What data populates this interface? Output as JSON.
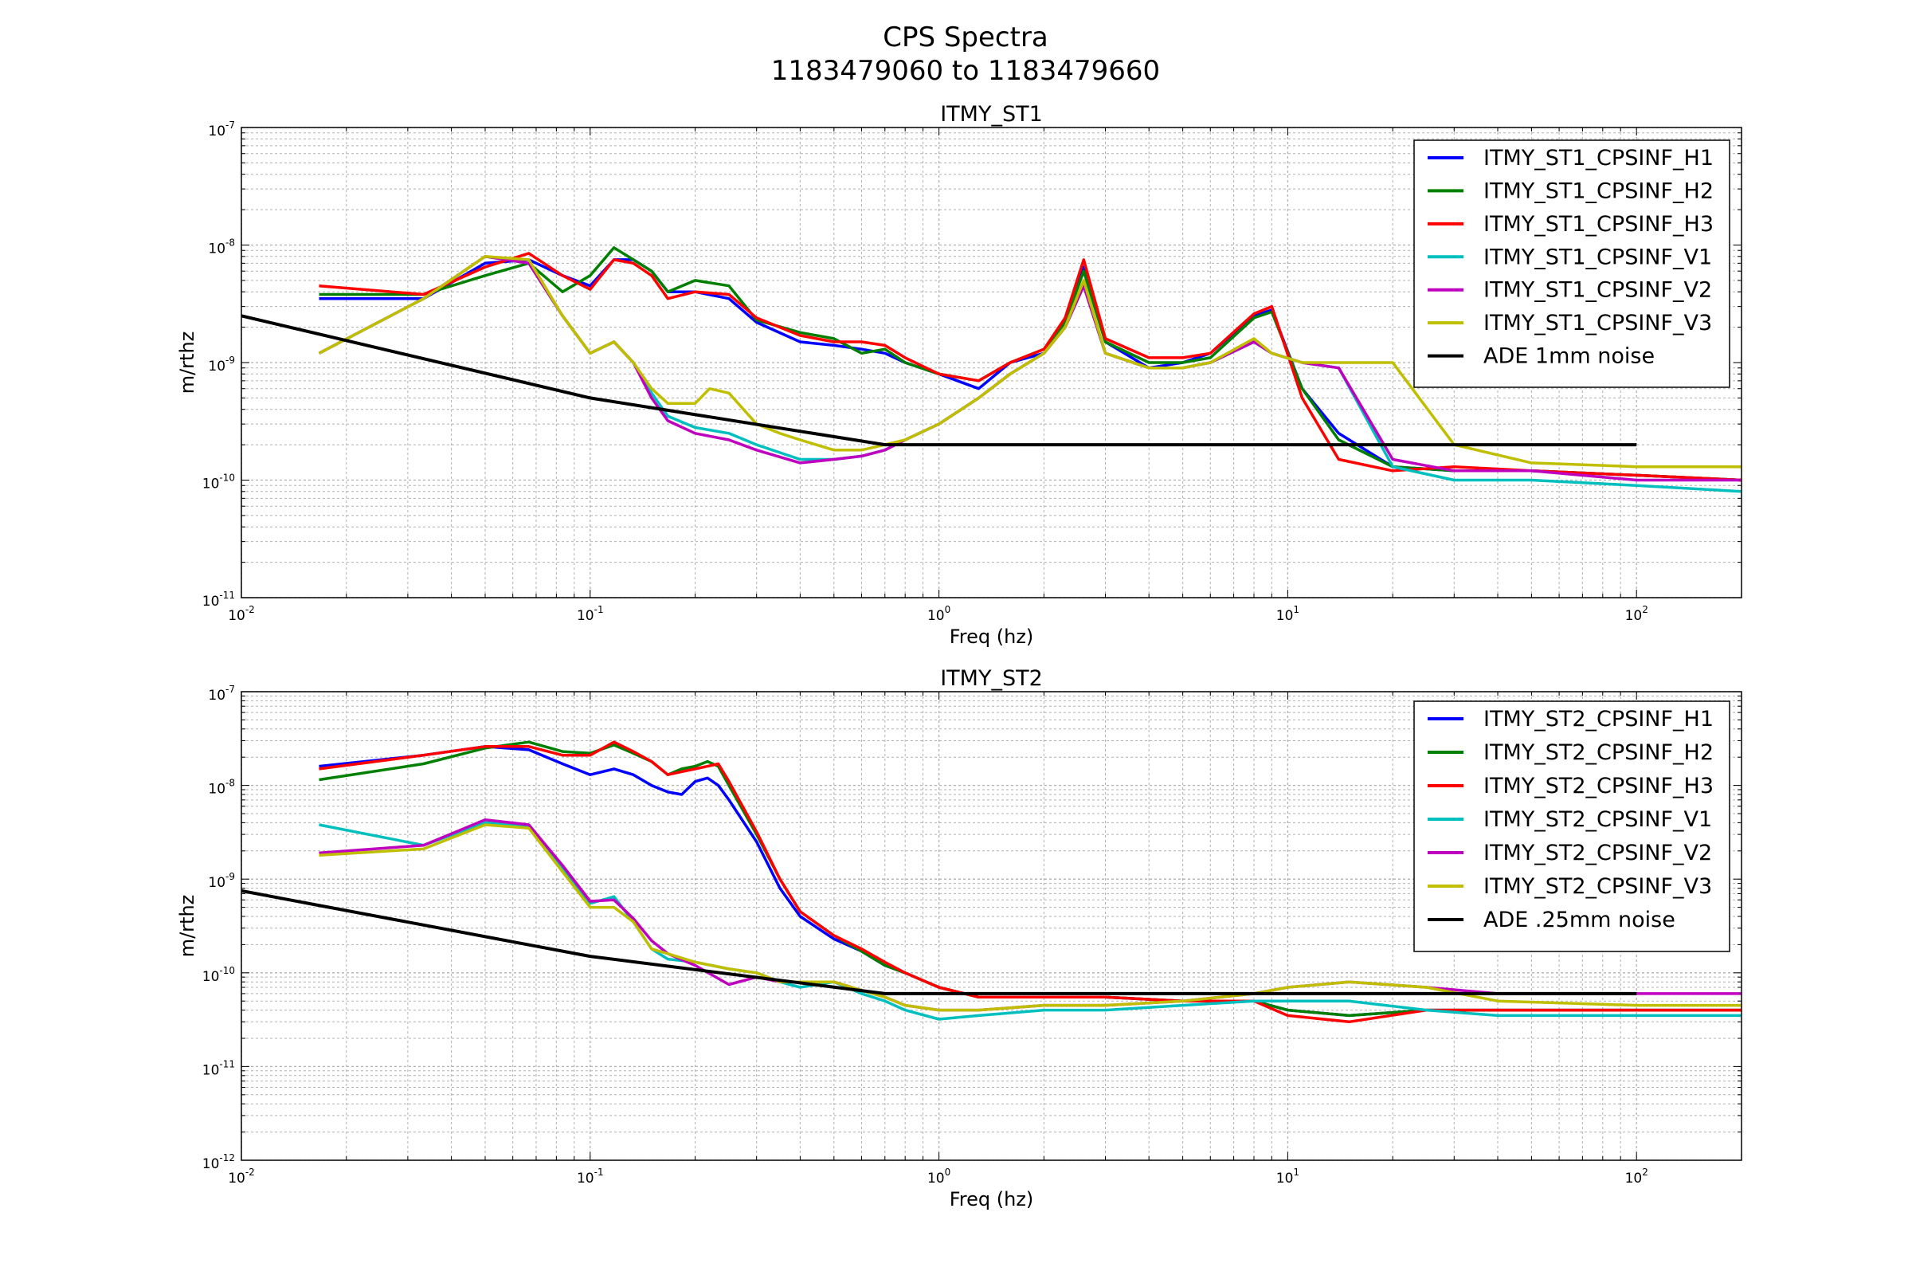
{
  "figure": {
    "title_line1": "CPS Spectra",
    "title_line2": "1183479060 to 1183479660"
  },
  "colors": {
    "H1": "#0000ff",
    "H2": "#007f00",
    "H3": "#ff0000",
    "V1": "#00bfbf",
    "V2": "#bf00bf",
    "V3": "#bfbf00",
    "noise": "#000000",
    "grid": "#b0b0b0"
  },
  "chart_data": [
    {
      "type": "line",
      "title": "ITMY_ST1",
      "xlabel": "Freq (hz)",
      "ylabel": "m/rthz",
      "xscale": "log",
      "yscale": "log",
      "xlim": [
        0.01,
        200
      ],
      "ylim": [
        1e-11,
        1e-07
      ],
      "x_ticks": [
        "10^-2",
        "10^-1",
        "10^0",
        "10^1",
        "10^2"
      ],
      "y_ticks": [
        "10^-11",
        "10^-10",
        "10^-9",
        "10^-8",
        "10^-7"
      ],
      "grid": true,
      "legend_position": "top-right",
      "series": [
        {
          "name": "ITMY_ST1_CPSINF_H1",
          "color_key": "H1",
          "x": [
            0.0167,
            0.0333,
            0.05,
            0.0667,
            0.0833,
            0.1,
            0.117,
            0.133,
            0.15,
            0.167,
            0.2,
            0.25,
            0.3,
            0.4,
            0.5,
            0.6,
            0.7,
            0.8,
            1.0,
            1.3,
            1.6,
            2.0,
            2.3,
            2.6,
            3.0,
            4.0,
            5.0,
            6.0,
            8.0,
            9.0,
            11,
            14,
            20,
            30,
            50,
            100,
            200
          ],
          "y": [
            3.5e-09,
            3.5e-09,
            7e-09,
            7.5e-09,
            5.5e-09,
            4.5e-09,
            7.5e-09,
            7.5e-09,
            6e-09,
            4e-09,
            4e-09,
            3.5e-09,
            2.2e-09,
            1.5e-09,
            1.4e-09,
            1.3e-09,
            1.2e-09,
            1e-09,
            8e-10,
            6e-10,
            1e-09,
            1.2e-09,
            2e-09,
            6.5e-09,
            1.5e-09,
            9e-10,
            1e-09,
            1.2e-09,
            2.5e-09,
            2.8e-09,
            6e-10,
            2.5e-10,
            1.3e-10,
            1.2e-10,
            1.2e-10,
            1.1e-10,
            1e-10
          ]
        },
        {
          "name": "ITMY_ST1_CPSINF_H2",
          "color_key": "H2",
          "x": [
            0.0167,
            0.0333,
            0.05,
            0.0667,
            0.0833,
            0.1,
            0.117,
            0.133,
            0.15,
            0.167,
            0.2,
            0.25,
            0.3,
            0.4,
            0.5,
            0.6,
            0.7,
            0.8,
            1.0,
            1.3,
            1.6,
            2.0,
            2.3,
            2.6,
            3.0,
            4.0,
            5.0,
            6.0,
            8.0,
            9.0,
            11,
            14,
            20,
            30,
            50,
            100,
            200
          ],
          "y": [
            3.8e-09,
            3.8e-09,
            5.5e-09,
            7e-09,
            4e-09,
            5.5e-09,
            9.5e-09,
            7.5e-09,
            6e-09,
            4e-09,
            5e-09,
            4.5e-09,
            2.3e-09,
            1.8e-09,
            1.6e-09,
            1.2e-09,
            1.3e-09,
            1e-09,
            8e-10,
            7e-10,
            1e-09,
            1.3e-09,
            2.2e-09,
            6e-09,
            1.5e-09,
            1e-09,
            1e-09,
            1.1e-09,
            2.4e-09,
            2.7e-09,
            6e-10,
            2.2e-10,
            1.3e-10,
            1.2e-10,
            1.2e-10,
            1.1e-10,
            1e-10
          ]
        },
        {
          "name": "ITMY_ST1_CPSINF_H3",
          "color_key": "H3",
          "x": [
            0.0167,
            0.0333,
            0.05,
            0.0667,
            0.0833,
            0.1,
            0.117,
            0.133,
            0.15,
            0.167,
            0.2,
            0.25,
            0.3,
            0.4,
            0.5,
            0.6,
            0.7,
            0.8,
            1.0,
            1.3,
            1.6,
            2.0,
            2.3,
            2.6,
            3.0,
            4.0,
            5.0,
            6.0,
            8.0,
            9.0,
            11,
            14,
            20,
            30,
            50,
            100,
            200
          ],
          "y": [
            4.5e-09,
            3.8e-09,
            6.5e-09,
            8.5e-09,
            5.5e-09,
            4.2e-09,
            7.5e-09,
            7e-09,
            5.5e-09,
            3.5e-09,
            4e-09,
            3.8e-09,
            2.4e-09,
            1.7e-09,
            1.5e-09,
            1.5e-09,
            1.4e-09,
            1.1e-09,
            8e-10,
            7e-10,
            1e-09,
            1.3e-09,
            2.4e-09,
            7.5e-09,
            1.6e-09,
            1.1e-09,
            1.1e-09,
            1.2e-09,
            2.6e-09,
            3e-09,
            5e-10,
            1.5e-10,
            1.2e-10,
            1.3e-10,
            1.2e-10,
            1.1e-10,
            1e-10
          ]
        },
        {
          "name": "ITMY_ST1_CPSINF_V1",
          "color_key": "V1",
          "x": [
            0.0167,
            0.0333,
            0.05,
            0.0667,
            0.0833,
            0.1,
            0.117,
            0.133,
            0.15,
            0.167,
            0.2,
            0.25,
            0.3,
            0.4,
            0.5,
            0.6,
            0.7,
            0.8,
            1.0,
            1.3,
            1.6,
            2.0,
            2.3,
            2.6,
            3.0,
            4.0,
            5.0,
            6.0,
            8.0,
            9.0,
            11,
            14,
            20,
            30,
            50,
            100,
            200
          ],
          "y": [
            1.2e-09,
            3.5e-09,
            8e-09,
            7e-09,
            2.5e-09,
            1.2e-09,
            1.5e-09,
            1e-09,
            5.5e-10,
            3.5e-10,
            2.8e-10,
            2.5e-10,
            2e-10,
            1.5e-10,
            1.5e-10,
            1.6e-10,
            1.8e-10,
            2.2e-10,
            3e-10,
            5e-10,
            8e-10,
            1.2e-09,
            2e-09,
            4.5e-09,
            1.2e-09,
            9e-10,
            9e-10,
            1e-09,
            1.5e-09,
            1.2e-09,
            1e-09,
            9e-10,
            1.3e-10,
            1e-10,
            1e-10,
            9e-11,
            8e-11
          ]
        },
        {
          "name": "ITMY_ST1_CPSINF_V2",
          "color_key": "V2",
          "x": [
            0.0167,
            0.0333,
            0.05,
            0.0667,
            0.0833,
            0.1,
            0.117,
            0.133,
            0.15,
            0.167,
            0.2,
            0.25,
            0.3,
            0.4,
            0.5,
            0.6,
            0.7,
            0.8,
            1.0,
            1.3,
            1.6,
            2.0,
            2.3,
            2.6,
            3.0,
            4.0,
            5.0,
            6.0,
            8.0,
            9.0,
            11,
            14,
            20,
            30,
            50,
            100,
            200
          ],
          "y": [
            1.2e-09,
            3.5e-09,
            8e-09,
            7e-09,
            2.5e-09,
            1.2e-09,
            1.5e-09,
            1e-09,
            5e-10,
            3.2e-10,
            2.5e-10,
            2.2e-10,
            1.8e-10,
            1.4e-10,
            1.5e-10,
            1.6e-10,
            1.8e-10,
            2.2e-10,
            3e-10,
            5e-10,
            8e-10,
            1.2e-09,
            2e-09,
            4.5e-09,
            1.2e-09,
            9e-10,
            9e-10,
            1e-09,
            1.5e-09,
            1.2e-09,
            1e-09,
            9e-10,
            1.5e-10,
            1.2e-10,
            1.2e-10,
            1e-10,
            1e-10
          ]
        },
        {
          "name": "ITMY_ST1_CPSINF_V3",
          "color_key": "V3",
          "x": [
            0.0167,
            0.0333,
            0.05,
            0.0667,
            0.0833,
            0.1,
            0.117,
            0.133,
            0.15,
            0.167,
            0.2,
            0.22,
            0.25,
            0.3,
            0.35,
            0.4,
            0.5,
            0.6,
            0.7,
            0.8,
            1.0,
            1.3,
            1.6,
            2.0,
            2.3,
            2.6,
            3.0,
            4.0,
            5.0,
            6.0,
            8.0,
            9.0,
            11,
            14,
            20,
            30,
            50,
            100,
            200
          ],
          "y": [
            1.2e-09,
            3.5e-09,
            8e-09,
            7.5e-09,
            2.5e-09,
            1.2e-09,
            1.5e-09,
            1e-09,
            6e-10,
            4.5e-10,
            4.5e-10,
            6e-10,
            5.5e-10,
            3e-10,
            2.5e-10,
            2.2e-10,
            1.8e-10,
            1.8e-10,
            2e-10,
            2.2e-10,
            3e-10,
            5e-10,
            8e-10,
            1.2e-09,
            2e-09,
            5e-09,
            1.2e-09,
            9e-10,
            9e-10,
            1e-09,
            1.6e-09,
            1.2e-09,
            1e-09,
            1e-09,
            1e-09,
            2e-10,
            1.4e-10,
            1.3e-10,
            1.3e-10
          ]
        },
        {
          "name": "ADE 1mm noise",
          "color_key": "noise",
          "x": [
            0.01,
            0.1,
            0.7,
            100
          ],
          "y": [
            2.5e-09,
            5e-10,
            2e-10,
            2e-10
          ]
        }
      ]
    },
    {
      "type": "line",
      "title": "ITMY_ST2",
      "xlabel": "Freq (hz)",
      "ylabel": "m/rthz",
      "xscale": "log",
      "yscale": "log",
      "xlim": [
        0.01,
        200
      ],
      "ylim": [
        1e-12,
        1e-07
      ],
      "x_ticks": [
        "10^-2",
        "10^-1",
        "10^0",
        "10^1",
        "10^2"
      ],
      "y_ticks": [
        "10^-12",
        "10^-11",
        "10^-10",
        "10^-9",
        "10^-8",
        "10^-7"
      ],
      "grid": true,
      "legend_position": "top-right",
      "series": [
        {
          "name": "ITMY_ST2_CPSINF_H1",
          "color_key": "H1",
          "x": [
            0.0167,
            0.0333,
            0.05,
            0.0667,
            0.0833,
            0.1,
            0.117,
            0.133,
            0.15,
            0.167,
            0.183,
            0.2,
            0.217,
            0.233,
            0.25,
            0.3,
            0.35,
            0.4,
            0.5,
            0.6,
            0.7,
            0.8,
            1.0,
            1.3,
            2.0,
            3.0,
            5.0,
            8.0,
            10,
            15,
            25,
            40,
            100,
            200
          ],
          "y": [
            1.6e-08,
            2.1e-08,
            2.6e-08,
            2.4e-08,
            1.7e-08,
            1.3e-08,
            1.5e-08,
            1.3e-08,
            1e-08,
            8.5e-09,
            8e-09,
            1.1e-08,
            1.2e-08,
            1e-08,
            7e-09,
            2.5e-09,
            8e-10,
            4e-10,
            2.3e-10,
            1.7e-10,
            1.2e-10,
            1e-10,
            7e-11,
            5.5e-11,
            5.5e-11,
            5.5e-11,
            5e-11,
            5e-11,
            4e-11,
            3.5e-11,
            4e-11,
            4e-11,
            4e-11,
            4e-11
          ]
        },
        {
          "name": "ITMY_ST2_CPSINF_H2",
          "color_key": "H2",
          "x": [
            0.0167,
            0.0333,
            0.05,
            0.0667,
            0.0833,
            0.1,
            0.117,
            0.133,
            0.15,
            0.167,
            0.183,
            0.2,
            0.217,
            0.233,
            0.25,
            0.3,
            0.35,
            0.4,
            0.5,
            0.6,
            0.7,
            0.8,
            1.0,
            1.3,
            2.0,
            3.0,
            5.0,
            8.0,
            10,
            15,
            25,
            40,
            100,
            200
          ],
          "y": [
            1.15e-08,
            1.7e-08,
            2.5e-08,
            2.9e-08,
            2.3e-08,
            2.2e-08,
            2.7e-08,
            2.2e-08,
            1.8e-08,
            1.3e-08,
            1.5e-08,
            1.6e-08,
            1.8e-08,
            1.6e-08,
            1e-08,
            3e-09,
            1e-09,
            4.5e-10,
            2.5e-10,
            1.7e-10,
            1.2e-10,
            1e-10,
            7e-11,
            5.5e-11,
            5.5e-11,
            5.5e-11,
            5e-11,
            5e-11,
            4e-11,
            3.5e-11,
            4e-11,
            4e-11,
            4e-11,
            4e-11
          ]
        },
        {
          "name": "ITMY_ST2_CPSINF_H3",
          "color_key": "H3",
          "x": [
            0.0167,
            0.0333,
            0.05,
            0.0667,
            0.0833,
            0.1,
            0.117,
            0.133,
            0.15,
            0.167,
            0.183,
            0.2,
            0.217,
            0.233,
            0.25,
            0.3,
            0.35,
            0.4,
            0.5,
            0.6,
            0.7,
            0.8,
            1.0,
            1.3,
            2.0,
            3.0,
            5.0,
            8.0,
            10,
            15,
            25,
            40,
            100,
            200
          ],
          "y": [
            1.5e-08,
            2.1e-08,
            2.6e-08,
            2.6e-08,
            2.1e-08,
            2.1e-08,
            2.9e-08,
            2.3e-08,
            1.8e-08,
            1.3e-08,
            1.4e-08,
            1.5e-08,
            1.6e-08,
            1.7e-08,
            1.1e-08,
            3.2e-09,
            1e-09,
            4.5e-10,
            2.5e-10,
            1.8e-10,
            1.3e-10,
            1e-10,
            7e-11,
            5.5e-11,
            5.5e-11,
            5.5e-11,
            5e-11,
            5e-11,
            3.5e-11,
            3e-11,
            4e-11,
            4e-11,
            4e-11,
            4e-11
          ]
        },
        {
          "name": "ITMY_ST2_CPSINF_V1",
          "color_key": "V1",
          "x": [
            0.0167,
            0.0333,
            0.05,
            0.0667,
            0.0833,
            0.1,
            0.117,
            0.133,
            0.15,
            0.167,
            0.2,
            0.25,
            0.3,
            0.35,
            0.4,
            0.5,
            0.6,
            0.7,
            0.8,
            1.0,
            1.3,
            2.0,
            3.0,
            5.0,
            8.0,
            10,
            15,
            25,
            40,
            100,
            200
          ],
          "y": [
            3.8e-09,
            2.3e-09,
            4e-09,
            3.7e-09,
            1.3e-09,
            5.5e-10,
            6.5e-10,
            3.5e-10,
            1.8e-10,
            1.4e-10,
            1.3e-10,
            1.1e-10,
            1e-10,
            8e-11,
            7e-11,
            8e-11,
            6e-11,
            5e-11,
            4e-11,
            3.2e-11,
            3.5e-11,
            4e-11,
            4e-11,
            4.5e-11,
            5e-11,
            5e-11,
            5e-11,
            4e-11,
            3.5e-11,
            3.5e-11,
            3.5e-11
          ]
        },
        {
          "name": "ITMY_ST2_CPSINF_V2",
          "color_key": "V2",
          "x": [
            0.0167,
            0.0333,
            0.05,
            0.0667,
            0.0833,
            0.1,
            0.117,
            0.133,
            0.15,
            0.167,
            0.2,
            0.25,
            0.3,
            0.35,
            0.4,
            0.5,
            0.6,
            0.7,
            0.8,
            1.0,
            1.3,
            2.0,
            3.0,
            5.0,
            8.0,
            10,
            15,
            25,
            40,
            100,
            200
          ],
          "y": [
            1.9e-09,
            2.3e-09,
            4.3e-09,
            3.8e-09,
            1.4e-09,
            5.8e-10,
            6e-10,
            3.8e-10,
            2.2e-10,
            1.6e-10,
            1.2e-10,
            7.5e-11,
            9e-11,
            8e-11,
            8e-11,
            8e-11,
            6.5e-11,
            5.5e-11,
            4.5e-11,
            4e-11,
            4e-11,
            4.5e-11,
            4.5e-11,
            5e-11,
            6e-11,
            7e-11,
            8e-11,
            7e-11,
            6e-11,
            6e-11,
            6e-11
          ]
        },
        {
          "name": "ITMY_ST2_CPSINF_V3",
          "color_key": "V3",
          "x": [
            0.0167,
            0.0333,
            0.05,
            0.0667,
            0.0833,
            0.1,
            0.117,
            0.133,
            0.15,
            0.167,
            0.2,
            0.25,
            0.3,
            0.35,
            0.4,
            0.5,
            0.6,
            0.7,
            0.8,
            1.0,
            1.3,
            2.0,
            3.0,
            5.0,
            8.0,
            10,
            15,
            25,
            40,
            100,
            200
          ],
          "y": [
            1.8e-09,
            2.1e-09,
            3.8e-09,
            3.5e-09,
            1.2e-09,
            5e-10,
            5e-10,
            3.5e-10,
            1.8e-10,
            1.6e-10,
            1.3e-10,
            1.1e-10,
            1e-10,
            8e-11,
            8e-11,
            8e-11,
            6.5e-11,
            5.5e-11,
            4.5e-11,
            4e-11,
            4e-11,
            4.5e-11,
            4.5e-11,
            5e-11,
            6e-11,
            7e-11,
            8e-11,
            7e-11,
            5e-11,
            4.5e-11,
            4.5e-11
          ]
        },
        {
          "name": "ADE .25mm noise",
          "color_key": "noise",
          "x": [
            0.01,
            0.1,
            0.7,
            100
          ],
          "y": [
            7.5e-10,
            1.5e-10,
            6e-11,
            6e-11
          ]
        }
      ]
    }
  ]
}
